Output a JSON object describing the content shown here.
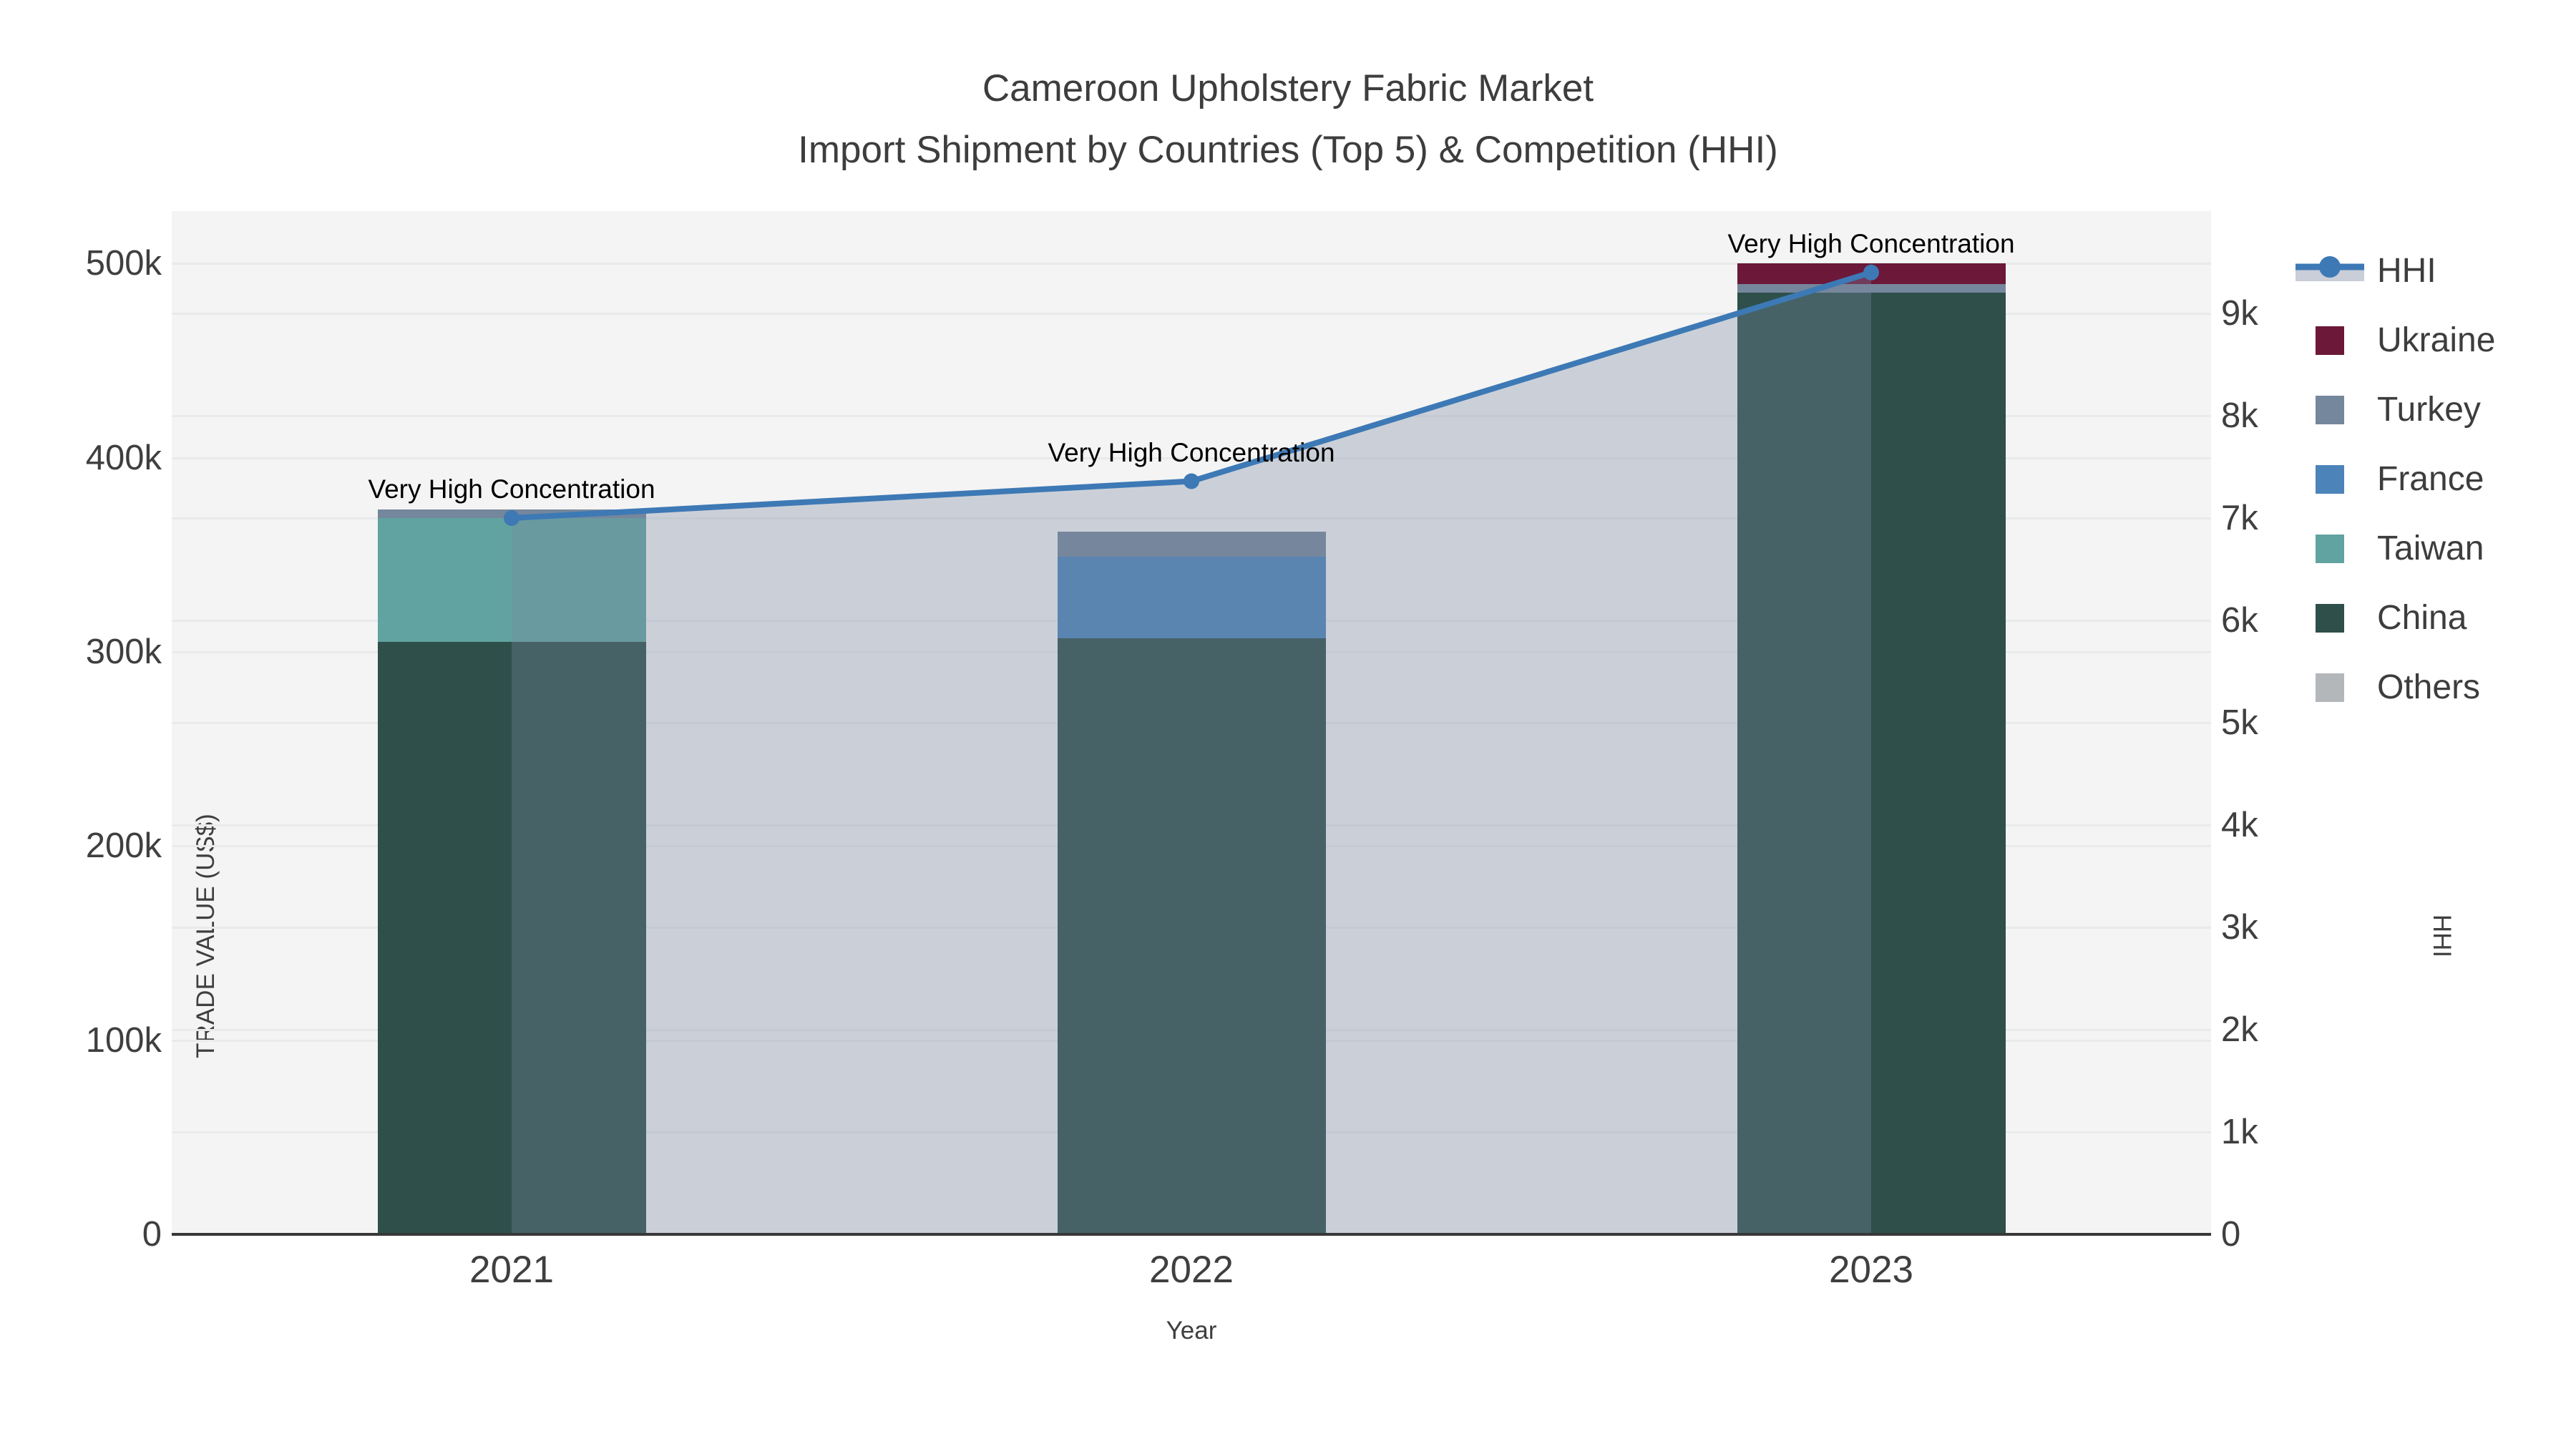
{
  "title": {
    "line1": "Cameroon Upholstery Fabric Market",
    "line2": "Import Shipment by Countries (Top 5) & Competition (HHI)"
  },
  "axes": {
    "x": {
      "title": "Year",
      "tick_labels": [
        "2021",
        "2022",
        "2023"
      ]
    },
    "y_left": {
      "title": "TRADE VALUE (US$)",
      "tick_labels": [
        "0",
        "100k",
        "200k",
        "300k",
        "400k",
        "500k"
      ]
    },
    "y_right": {
      "title": "HHI",
      "tick_labels": [
        "0",
        "1k",
        "2k",
        "3k",
        "4k",
        "5k",
        "6k",
        "7k",
        "8k",
        "9k"
      ]
    }
  },
  "legend": {
    "items": [
      {
        "label": "HHI",
        "kind": "line"
      },
      {
        "label": "Ukraine",
        "kind": "swatch"
      },
      {
        "label": "Turkey",
        "kind": "swatch"
      },
      {
        "label": "France",
        "kind": "swatch"
      },
      {
        "label": "Taiwan",
        "kind": "swatch"
      },
      {
        "label": "China",
        "kind": "swatch"
      },
      {
        "label": "Others",
        "kind": "swatch"
      }
    ]
  },
  "chart_data": {
    "type": "combo",
    "subtype": "stacked bars (left axis) + line with area fill (right axis)",
    "categories": [
      "2021",
      "2022",
      "2023"
    ],
    "bar_series_bottom_to_top": [
      {
        "name": "Others",
        "color": "#b4b7ba",
        "values": [
          0,
          0,
          0
        ]
      },
      {
        "name": "China",
        "color": "#2e4f4a",
        "values": [
          305000,
          307000,
          485000
        ]
      },
      {
        "name": "Taiwan",
        "color": "#61a3a0",
        "values": [
          64000,
          0,
          0
        ]
      },
      {
        "name": "France",
        "color": "#4c84ba",
        "values": [
          0,
          42000,
          0
        ]
      },
      {
        "name": "Turkey",
        "color": "#75879c",
        "values": [
          4500,
          13000,
          4500
        ]
      },
      {
        "name": "Ukraine",
        "color": "#6b1839",
        "values": [
          0,
          0,
          10500
        ]
      }
    ],
    "bar_totals": [
      373500,
      362000,
      500000
    ],
    "line_series": {
      "name": "HHI",
      "axis": "right",
      "color": "#3d79b5",
      "fill_color": "rgba(120,138,160,0.33)",
      "values": [
        7000,
        7360,
        9400
      ]
    },
    "annotations": [
      {
        "text": "Very High Concentration",
        "category": "2021"
      },
      {
        "text": "Very High Concentration",
        "category": "2022"
      },
      {
        "text": "Very High Concentration",
        "category": "2023"
      }
    ],
    "y_left": {
      "tick_values": [
        0,
        100000,
        200000,
        300000,
        400000,
        500000
      ],
      "range": [
        0,
        527000
      ]
    },
    "y_right": {
      "tick_values": [
        0,
        1000,
        2000,
        3000,
        4000,
        5000,
        6000,
        7000,
        8000,
        9000
      ],
      "range": [
        0,
        10000
      ]
    },
    "grid": true,
    "legend_position": "right",
    "plot_bg_color": "#f4f4f4",
    "grid_color": "#e9eaec",
    "axis_line_color": "#383838"
  }
}
